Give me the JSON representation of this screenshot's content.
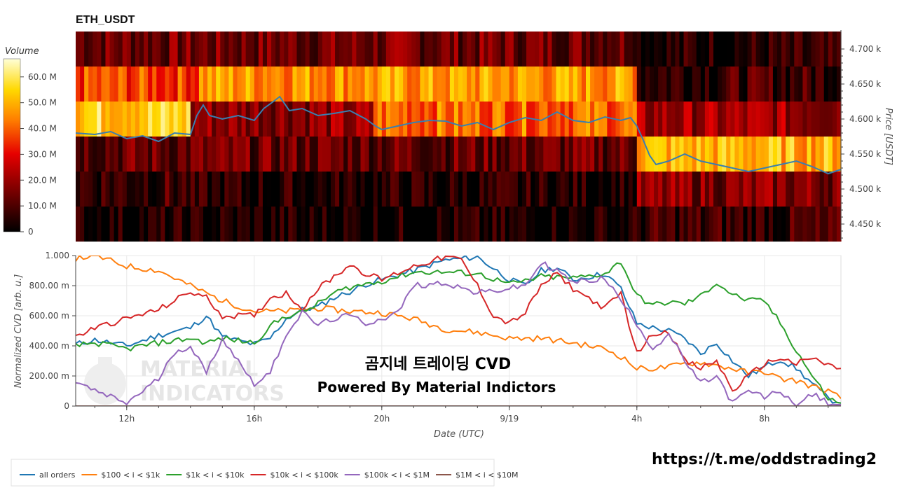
{
  "heatmap_chart": {
    "title": "ETH_USDT",
    "colorbar": {
      "title": "Volume",
      "ticks": [
        "60.0 M",
        "50.0 M",
        "40.0 M",
        "30.0 M",
        "20.0 M",
        "10.0 M",
        "0"
      ],
      "max": 67
    },
    "y_axis": {
      "label": "Price [USDT]",
      "ticks": [
        "4.700 k",
        "4.650 k",
        "4.600 k",
        "4.550 k",
        "4.500 k",
        "4.450 k"
      ],
      "tick_values": [
        4700,
        4650,
        4600,
        4550,
        4500,
        4450
      ],
      "range": [
        4427,
        4727
      ]
    },
    "price_bands": [
      4700,
      4650,
      4600,
      4550,
      4500,
      4450
    ],
    "time_range_hours": [
      10.4,
      34.4
    ],
    "price_line_color": "#3a7fb0",
    "price_points": [
      [
        10.4,
        4580
      ],
      [
        11.0,
        4578
      ],
      [
        11.5,
        4582
      ],
      [
        12.0,
        4572
      ],
      [
        12.5,
        4576
      ],
      [
        13.0,
        4568
      ],
      [
        13.5,
        4580
      ],
      [
        14.0,
        4578
      ],
      [
        14.2,
        4605
      ],
      [
        14.4,
        4620
      ],
      [
        14.6,
        4605
      ],
      [
        15.0,
        4600
      ],
      [
        15.5,
        4605
      ],
      [
        16.0,
        4598
      ],
      [
        16.3,
        4615
      ],
      [
        16.6,
        4625
      ],
      [
        16.8,
        4632
      ],
      [
        17.1,
        4612
      ],
      [
        17.5,
        4615
      ],
      [
        18.0,
        4605
      ],
      [
        18.5,
        4608
      ],
      [
        19.0,
        4612
      ],
      [
        19.5,
        4600
      ],
      [
        19.8,
        4590
      ],
      [
        20.0,
        4585
      ],
      [
        20.5,
        4590
      ],
      [
        21.0,
        4595
      ],
      [
        21.5,
        4598
      ],
      [
        22.0,
        4597
      ],
      [
        22.5,
        4590
      ],
      [
        23.0,
        4595
      ],
      [
        23.5,
        4585
      ],
      [
        24.0,
        4595
      ],
      [
        24.5,
        4602
      ],
      [
        25.0,
        4598
      ],
      [
        25.5,
        4610
      ],
      [
        26.0,
        4598
      ],
      [
        26.5,
        4595
      ],
      [
        27.0,
        4603
      ],
      [
        27.5,
        4598
      ],
      [
        27.8,
        4602
      ],
      [
        28.0,
        4590
      ],
      [
        28.2,
        4570
      ],
      [
        28.4,
        4548
      ],
      [
        28.6,
        4535
      ],
      [
        29.0,
        4540
      ],
      [
        29.5,
        4550
      ],
      [
        30.0,
        4540
      ],
      [
        30.5,
        4535
      ],
      [
        31.0,
        4530
      ],
      [
        31.5,
        4525
      ],
      [
        32.0,
        4530
      ],
      [
        32.5,
        4535
      ],
      [
        33.0,
        4540
      ],
      [
        33.5,
        4532
      ],
      [
        34.0,
        4522
      ],
      [
        34.4,
        4528
      ]
    ]
  },
  "cvd_chart": {
    "y_axis": {
      "label": "Normalized CVD [arb. u.]",
      "ticks": [
        "1.000",
        "800.00 m",
        "600.00 m",
        "400.00 m",
        "200.00 m",
        "0"
      ],
      "range": [
        0,
        1
      ]
    },
    "x_axis": {
      "label": "Date (UTC)",
      "ticks": [
        "12h",
        "16h",
        "20h",
        "9/19",
        "4h",
        "8h"
      ],
      "tick_hours": [
        12,
        16,
        20,
        24,
        28,
        32
      ]
    },
    "overlay_title": "곰지네 트레이딩 CVD",
    "overlay_subtitle": "Powered By Material Indictors",
    "watermark_line1": "MATERIAL",
    "watermark_line2": "INDICATORS"
  },
  "chart_data": {
    "type": "line",
    "x_unit": "hours since 9/18 00:00 UTC (24 = 9/19 00h)",
    "series": [
      {
        "name": "all orders",
        "color": "#1f77b4",
        "points": [
          [
            10.4,
            0.41
          ],
          [
            11,
            0.44
          ],
          [
            12,
            0.4
          ],
          [
            13,
            0.47
          ],
          [
            14,
            0.52
          ],
          [
            14.5,
            0.6
          ],
          [
            15,
            0.46
          ],
          [
            16,
            0.41
          ],
          [
            16.5,
            0.45
          ],
          [
            17,
            0.58
          ],
          [
            17.5,
            0.64
          ],
          [
            18,
            0.66
          ],
          [
            18.5,
            0.72
          ],
          [
            19,
            0.76
          ],
          [
            19.5,
            0.81
          ],
          [
            20,
            0.84
          ],
          [
            21,
            0.9
          ],
          [
            22,
            0.97
          ],
          [
            23,
            0.99
          ],
          [
            24,
            0.84
          ],
          [
            24.5,
            0.8
          ],
          [
            25,
            0.9
          ],
          [
            25.5,
            0.92
          ],
          [
            26,
            0.84
          ],
          [
            27,
            0.88
          ],
          [
            27.5,
            0.78
          ],
          [
            28,
            0.55
          ],
          [
            28.5,
            0.52
          ],
          [
            29,
            0.5
          ],
          [
            29.5,
            0.45
          ],
          [
            30,
            0.35
          ],
          [
            30.5,
            0.42
          ],
          [
            31,
            0.3
          ],
          [
            31.5,
            0.2
          ],
          [
            32,
            0.26
          ],
          [
            32.5,
            0.31
          ],
          [
            33,
            0.25
          ],
          [
            33.5,
            0.15
          ],
          [
            34,
            0.05
          ],
          [
            34.4,
            0.02
          ]
        ]
      },
      {
        "name": "$100 < i < $1k",
        "color": "#ff7f0e",
        "points": [
          [
            10.4,
            0.98
          ],
          [
            11,
            1.0
          ],
          [
            12,
            0.93
          ],
          [
            13,
            0.9
          ],
          [
            14,
            0.8
          ],
          [
            15,
            0.7
          ],
          [
            16,
            0.63
          ],
          [
            17,
            0.63
          ],
          [
            18,
            0.65
          ],
          [
            19,
            0.63
          ],
          [
            20,
            0.62
          ],
          [
            21,
            0.58
          ],
          [
            22,
            0.51
          ],
          [
            23,
            0.49
          ],
          [
            24,
            0.45
          ],
          [
            25,
            0.45
          ],
          [
            26,
            0.42
          ],
          [
            27,
            0.38
          ],
          [
            27.5,
            0.33
          ],
          [
            28,
            0.25
          ],
          [
            28.5,
            0.25
          ],
          [
            29,
            0.26
          ],
          [
            29.5,
            0.28
          ],
          [
            30,
            0.29
          ],
          [
            31,
            0.25
          ],
          [
            31.5,
            0.22
          ],
          [
            32,
            0.23
          ],
          [
            32.5,
            0.18
          ],
          [
            33,
            0.17
          ],
          [
            33.5,
            0.13
          ],
          [
            34,
            0.1
          ],
          [
            34.4,
            0.05
          ]
        ]
      },
      {
        "name": "$1k < i < $10k",
        "color": "#2ca02c",
        "points": [
          [
            10.4,
            0.4
          ],
          [
            11,
            0.42
          ],
          [
            12,
            0.38
          ],
          [
            13,
            0.42
          ],
          [
            14,
            0.45
          ],
          [
            14.5,
            0.42
          ],
          [
            15,
            0.45
          ],
          [
            16,
            0.42
          ],
          [
            16.5,
            0.53
          ],
          [
            17,
            0.6
          ],
          [
            17.5,
            0.62
          ],
          [
            18,
            0.68
          ],
          [
            18.5,
            0.75
          ],
          [
            19,
            0.79
          ],
          [
            20,
            0.83
          ],
          [
            21,
            0.89
          ],
          [
            22,
            0.89
          ],
          [
            23,
            0.88
          ],
          [
            24,
            0.81
          ],
          [
            24.5,
            0.83
          ],
          [
            25,
            0.86
          ],
          [
            26,
            0.85
          ],
          [
            27,
            0.88
          ],
          [
            27.5,
            0.96
          ],
          [
            28,
            0.73
          ],
          [
            28.5,
            0.67
          ],
          [
            29,
            0.69
          ],
          [
            29.5,
            0.68
          ],
          [
            30,
            0.73
          ],
          [
            30.5,
            0.82
          ],
          [
            31,
            0.74
          ],
          [
            31.5,
            0.7
          ],
          [
            32,
            0.7
          ],
          [
            32.5,
            0.55
          ],
          [
            33,
            0.37
          ],
          [
            33.5,
            0.2
          ],
          [
            34,
            0.05
          ],
          [
            34.4,
            0.02
          ]
        ]
      },
      {
        "name": "$10k < i < $100k",
        "color": "#d62728",
        "points": [
          [
            10.4,
            0.46
          ],
          [
            11,
            0.52
          ],
          [
            12,
            0.58
          ],
          [
            13,
            0.64
          ],
          [
            13.5,
            0.7
          ],
          [
            14,
            0.76
          ],
          [
            14.5,
            0.72
          ],
          [
            15,
            0.6
          ],
          [
            16,
            0.6
          ],
          [
            16.5,
            0.72
          ],
          [
            17,
            0.75
          ],
          [
            17.5,
            0.65
          ],
          [
            18,
            0.78
          ],
          [
            18.5,
            0.86
          ],
          [
            19,
            0.94
          ],
          [
            19.5,
            0.88
          ],
          [
            20,
            0.84
          ],
          [
            21,
            0.93
          ],
          [
            22,
            0.99
          ],
          [
            22.5,
            0.97
          ],
          [
            23,
            0.8
          ],
          [
            23.5,
            0.6
          ],
          [
            24,
            0.55
          ],
          [
            24.5,
            0.62
          ],
          [
            25,
            0.8
          ],
          [
            25.5,
            0.88
          ],
          [
            26,
            0.78
          ],
          [
            27,
            0.65
          ],
          [
            27.5,
            0.75
          ],
          [
            28,
            0.35
          ],
          [
            28.5,
            0.48
          ],
          [
            29,
            0.5
          ],
          [
            29.5,
            0.3
          ],
          [
            30,
            0.25
          ],
          [
            30.5,
            0.3
          ],
          [
            31,
            0.1
          ],
          [
            31.5,
            0.2
          ],
          [
            32,
            0.28
          ],
          [
            32.5,
            0.32
          ],
          [
            33,
            0.28
          ],
          [
            33.5,
            0.32
          ],
          [
            34,
            0.27
          ],
          [
            34.4,
            0.25
          ]
        ]
      },
      {
        "name": "$100k < i < $1M",
        "color": "#9467bd",
        "points": [
          [
            10.4,
            0.16
          ],
          [
            11,
            0.1
          ],
          [
            12,
            0.02
          ],
          [
            13,
            0.18
          ],
          [
            13.5,
            0.36
          ],
          [
            14,
            0.4
          ],
          [
            14.5,
            0.22
          ],
          [
            15,
            0.45
          ],
          [
            16,
            0.15
          ],
          [
            16.5,
            0.22
          ],
          [
            17,
            0.48
          ],
          [
            17.5,
            0.62
          ],
          [
            18,
            0.54
          ],
          [
            18.5,
            0.58
          ],
          [
            19,
            0.6
          ],
          [
            19.5,
            0.55
          ],
          [
            20,
            0.58
          ],
          [
            20.5,
            0.62
          ],
          [
            21,
            0.8
          ],
          [
            22,
            0.82
          ],
          [
            23,
            0.75
          ],
          [
            24,
            0.78
          ],
          [
            24.5,
            0.8
          ],
          [
            25,
            0.95
          ],
          [
            25.5,
            0.9
          ],
          [
            26,
            0.82
          ],
          [
            27,
            0.85
          ],
          [
            27.5,
            0.7
          ],
          [
            28,
            0.55
          ],
          [
            28.5,
            0.38
          ],
          [
            29,
            0.48
          ],
          [
            29.5,
            0.3
          ],
          [
            30,
            0.15
          ],
          [
            30.5,
            0.2
          ],
          [
            31,
            0.02
          ],
          [
            31.5,
            0.1
          ],
          [
            32,
            0.06
          ],
          [
            32.5,
            0.1
          ],
          [
            33,
            0.0
          ],
          [
            33.5,
            0.08
          ],
          [
            34,
            0.02
          ],
          [
            34.4,
            0.01
          ]
        ]
      },
      {
        "name": "$1M < i < $10M",
        "color": "#8c564b",
        "points": [
          [
            10.4,
            0.0
          ],
          [
            34.4,
            0.0
          ]
        ]
      }
    ]
  },
  "footer": {
    "link": "https://t.me/oddstrading2"
  }
}
